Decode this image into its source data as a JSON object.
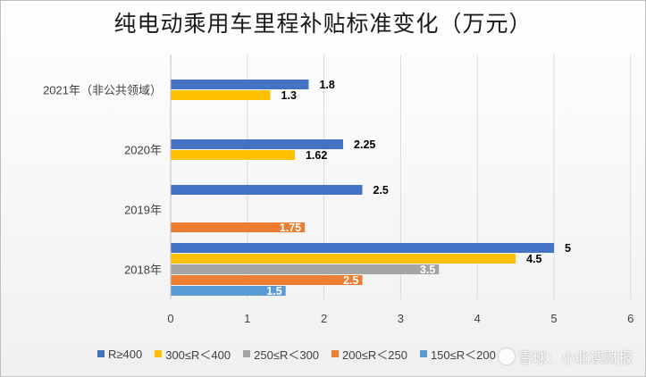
{
  "chart_data": {
    "type": "bar",
    "orientation": "horizontal",
    "title": "纯电动乘用车里程补贴标准变化（万元）",
    "categories": [
      "2021年（非公共领域）",
      "2020年",
      "2019年",
      "2018年"
    ],
    "series": [
      {
        "name": "R≥400",
        "color": "#4472C4",
        "label_color": "#000000",
        "values": [
          1.8,
          2.25,
          2.5,
          5
        ]
      },
      {
        "name": "300≤R＜400",
        "color": "#FFC000",
        "label_color": "#000000",
        "values": [
          1.3,
          1.62,
          null,
          4.5
        ]
      },
      {
        "name": "250≤R＜300",
        "color": "#A5A5A5",
        "label_color": "#ffffff",
        "values": [
          null,
          null,
          null,
          3.5
        ]
      },
      {
        "name": "200≤R＜250",
        "color": "#ED7D31",
        "label_color": "#ffffff",
        "values": [
          null,
          null,
          1.75,
          2.5
        ]
      },
      {
        "name": "150≤R＜200",
        "color": "#5B9BD5",
        "label_color": "#ffffff",
        "values": [
          null,
          null,
          null,
          1.5
        ]
      }
    ],
    "data_labels": [
      [
        "1.8",
        "1.3",
        "",
        "",
        ""
      ],
      [
        "2.25",
        "1.62",
        "",
        "",
        ""
      ],
      [
        "2.5",
        "",
        "",
        "1.75",
        ""
      ],
      [
        "5",
        "4.5",
        "3.5",
        "2.5",
        "1.5"
      ]
    ],
    "xlim": [
      0,
      6
    ],
    "xticks": [
      "0",
      "1",
      "2",
      "3",
      "4",
      "5",
      "6"
    ],
    "grid": true,
    "legend_position": "bottom"
  },
  "watermark": {
    "text": "雪球：小北读财报"
  }
}
